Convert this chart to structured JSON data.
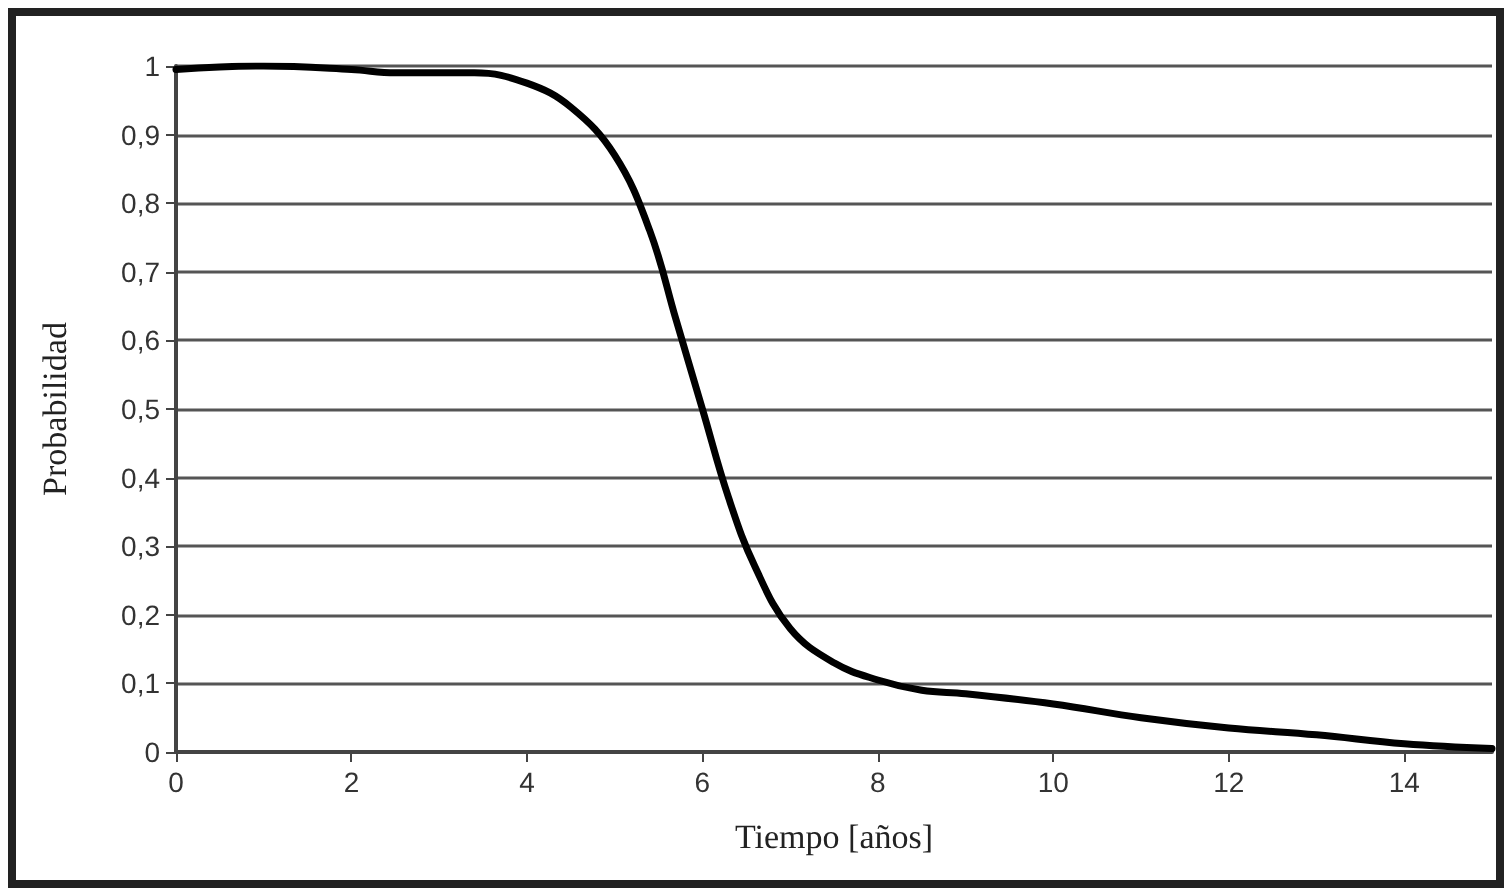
{
  "chart_data": {
    "type": "line",
    "xlabel": "Tiempo [años]",
    "ylabel": "Probabilidad",
    "x": [
      0,
      1,
      2,
      2.5,
      3.4,
      4,
      4.5,
      5,
      5.4,
      5.7,
      6,
      6.3,
      6.6,
      7,
      7.5,
      8,
      8.5,
      9,
      10,
      11,
      12,
      13,
      14,
      15
    ],
    "series": [
      {
        "color": "#000000",
        "values": [
          0.995,
          1.0,
          0.995,
          0.99,
          0.99,
          0.975,
          0.94,
          0.87,
          0.76,
          0.63,
          0.5,
          0.37,
          0.27,
          0.18,
          0.13,
          0.105,
          0.09,
          0.085,
          0.07,
          0.05,
          0.035,
          0.025,
          0.012,
          0.005
        ]
      }
    ],
    "xlim": [
      0,
      15
    ],
    "xticks": [
      0,
      2,
      4,
      6,
      8,
      10,
      12,
      14
    ],
    "ylim": [
      0,
      1
    ],
    "yticks": [
      0,
      {
        "value": 0.1,
        "label": "0,1"
      },
      {
        "value": 0.2,
        "label": "0,2"
      },
      {
        "value": 0.3,
        "label": "0,3"
      },
      {
        "value": 0.4,
        "label": "0,4"
      },
      {
        "value": 0.5,
        "label": "0,5"
      },
      {
        "value": 0.6,
        "label": "0,6"
      },
      {
        "value": 0.7,
        "label": "0,7"
      },
      {
        "value": 0.8,
        "label": "0,8"
      },
      {
        "value": 0.9,
        "label": "0,9"
      },
      1
    ],
    "grid": "y",
    "marker": "none",
    "line_style": "solid"
  }
}
